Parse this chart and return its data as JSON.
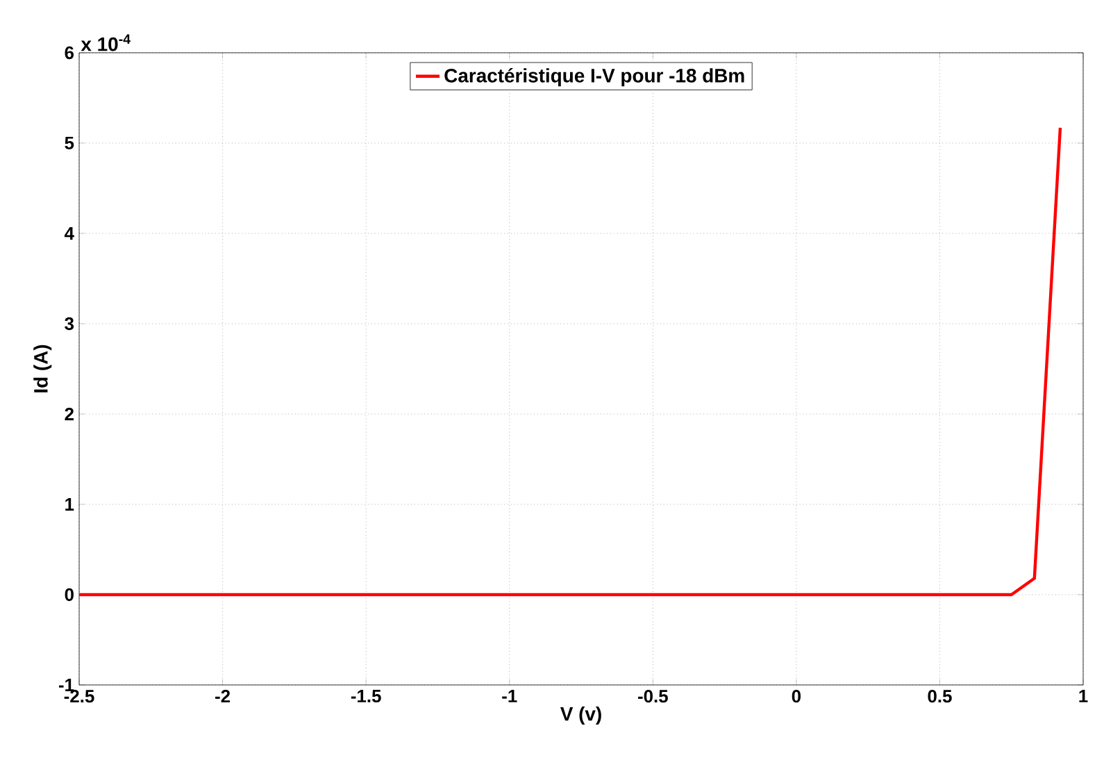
{
  "chart_data": {
    "type": "line",
    "xlabel": "V (v)",
    "ylabel": "Id (A)",
    "annotations": [
      "x 10$^{-4}$"
    ],
    "x": [
      -2.5,
      0.75,
      0.83,
      0.92
    ],
    "series": [
      {
        "name": "Caractéristique I-V pour -18 dBm",
        "color": "#ff0000",
        "values": [
          0,
          0,
          0.18,
          5.17
        ]
      }
    ],
    "xlim": [
      -2.5,
      1
    ],
    "ylim": [
      -1,
      6
    ],
    "xticks": [
      -2.5,
      -2,
      -1.5,
      -1,
      -0.5,
      0,
      0.5,
      1
    ],
    "yticks": [
      -1,
      0,
      1,
      2,
      3,
      4,
      5,
      6
    ],
    "grid": true,
    "legend": "top"
  }
}
